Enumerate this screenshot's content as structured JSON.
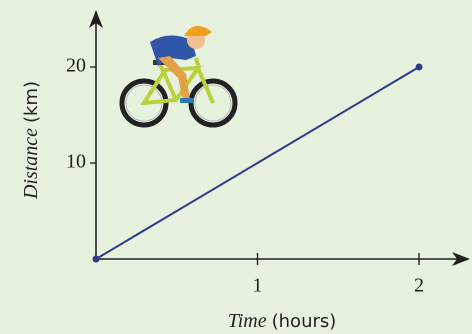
{
  "chart_data": {
    "type": "line",
    "x": [
      0,
      2
    ],
    "values": [
      0,
      20
    ],
    "color": "#2d3a8c",
    "xlim": [
      0,
      2.3
    ],
    "ylim": [
      0,
      25.5
    ],
    "xticks": [
      1,
      2
    ],
    "yticks": [
      10,
      20
    ],
    "xlabel_italic": "Time",
    "xlabel_rest": "(hours)",
    "ylabel_italic": "Distance",
    "ylabel_rest": "(km)"
  }
}
